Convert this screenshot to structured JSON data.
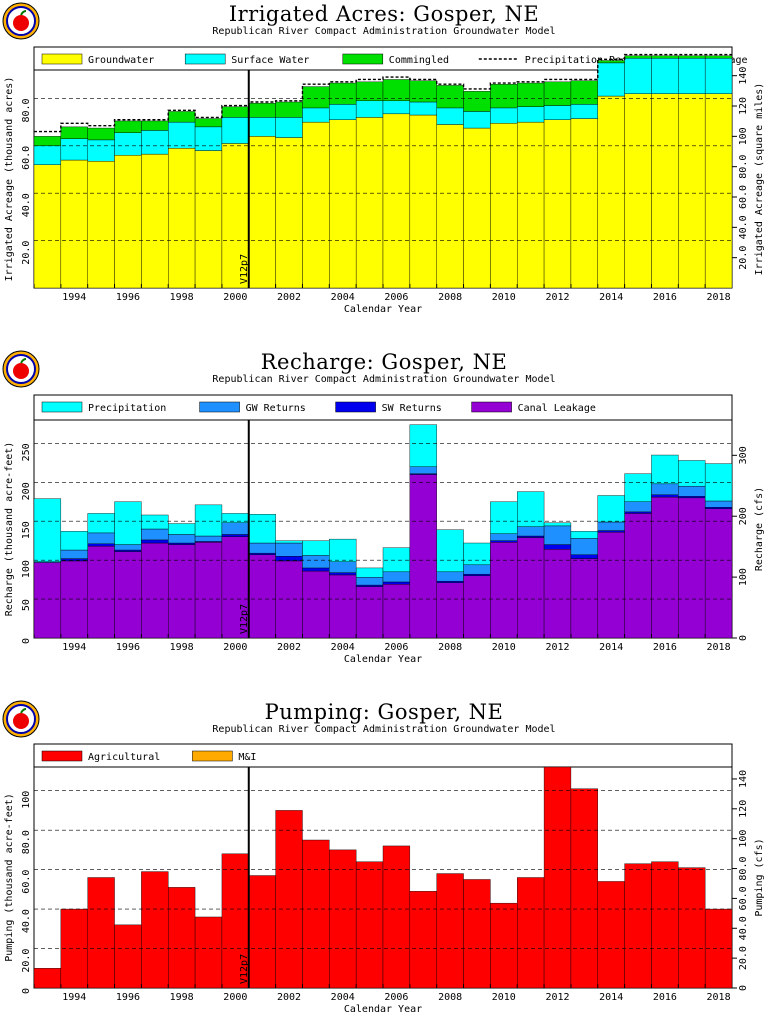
{
  "colors": {
    "groundwater": "#ffff00",
    "surface_water": "#00ffff",
    "commingled": "#00e000",
    "precipitation": "#00ffff",
    "gw_returns": "#1e90ff",
    "sw_returns": "#0000ee",
    "canal_leakage": "#9400d3",
    "agricultural": "#ff0000",
    "mi": "#ffaa00"
  },
  "panels": [
    {
      "title": "Irrigated Acres: Gosper, NE",
      "subtitle": "Republican River Compact Administration Groundwater Model",
      "logo": "apple-logo",
      "chart_data": {
        "type": "bar",
        "stacked": true,
        "xlabel": "Calendar Year",
        "ylabel": "Irrigated Acreage (thousand acres)",
        "y2label": "Irrigated Acreage (square miles)",
        "x": [
          1993,
          1994,
          1995,
          1996,
          1997,
          1998,
          1999,
          2000,
          2001,
          2002,
          2003,
          2004,
          2005,
          2006,
          2007,
          2008,
          2009,
          2010,
          2011,
          2012,
          2013,
          2014,
          2015,
          2016,
          2017,
          2018
        ],
        "xticks": [
          "1994",
          "1996",
          "1998",
          "2000",
          "2002",
          "2004",
          "2006",
          "2008",
          "2010",
          "2012",
          "2014",
          "2016",
          "2018"
        ],
        "ylim": [
          0,
          92
        ],
        "yticks": [
          "20.0",
          "40.0",
          "60.0",
          "80.0"
        ],
        "y2ticks": [
          "20.0",
          "40.0",
          "60.0",
          "80.0",
          "100",
          "120",
          "140"
        ],
        "marker_label": "V12p7",
        "marker_x": 2001,
        "series": [
          {
            "name": "Groundwater",
            "color_key": "groundwater",
            "values": [
              52,
              54,
              53.5,
              56,
              56.5,
              59,
              58,
              61,
              64,
              63.5,
              70,
              71,
              72,
              73.5,
              73,
              69,
              67.5,
              69.5,
              70,
              71,
              71.5,
              81,
              82,
              82,
              82,
              82
            ]
          },
          {
            "name": "Surface Water",
            "color_key": "surface_water",
            "values": [
              8,
              9,
              9,
              9.5,
              10,
              11,
              10,
              11,
              8,
              8.5,
              6,
              6.5,
              7,
              5.5,
              5.5,
              7,
              7,
              6.5,
              6.5,
              6,
              6,
              14,
              15,
              15,
              15,
              15
            ]
          },
          {
            "name": "Commingled",
            "color_key": "commingled",
            "values": [
              4,
              5,
              5,
              5,
              4,
              4.5,
              3.5,
              4.5,
              6,
              6.5,
              9,
              9,
              8,
              9,
              9,
              9.5,
              8.5,
              10,
              10,
              10,
              10,
              1,
              1,
              1,
              1,
              1
            ]
          }
        ],
        "line": {
          "name": "Precipitation Recharge Credit Acreage",
          "values": [
            66,
            69.5,
            68.5,
            71,
            71,
            75,
            72,
            77,
            78.5,
            79,
            86,
            87,
            88,
            89,
            88,
            86,
            84,
            86.5,
            87,
            88,
            88,
            96.5,
            98.5,
            98.5,
            98.5,
            98.5
          ]
        }
      }
    },
    {
      "title": "Recharge: Gosper, NE",
      "subtitle": "Republican River Compact Administration Groundwater Model",
      "logo": "apple-logo",
      "chart_data": {
        "type": "bar",
        "stacked": true,
        "xlabel": "Calendar Year",
        "ylabel": "Recharge (thousand acre-feet)",
        "y2label": "Recharge (cfs)",
        "x": [
          1993,
          1994,
          1995,
          1996,
          1997,
          1998,
          1999,
          2000,
          2001,
          2002,
          2003,
          2004,
          2005,
          2006,
          2007,
          2008,
          2009,
          2010,
          2011,
          2012,
          2013,
          2014,
          2015,
          2016,
          2017,
          2018
        ],
        "xticks": [
          "1994",
          "1996",
          "1998",
          "2000",
          "2002",
          "2004",
          "2006",
          "2008",
          "2010",
          "2012",
          "2014",
          "2016",
          "2018"
        ],
        "ylim": [
          0,
          280
        ],
        "yticks": [
          "0",
          "50",
          "100",
          "150",
          "200",
          "250"
        ],
        "y2ticks": [
          "0",
          "100",
          "200",
          "300"
        ],
        "marker_label": "V12p7",
        "marker_x": 2001,
        "series": [
          {
            "name": "Precipitation",
            "color_key": "precipitation",
            "values": [
              81,
              24,
              25,
              55,
              18,
              14,
              40,
              12,
              37,
              3,
              19,
              29,
              12,
              31,
              54,
              54,
              28,
              41,
              45,
              4,
              9,
              34,
              36,
              37,
              33,
              48
            ]
          },
          {
            "name": "GW Returns",
            "color_key": "gw_returns",
            "values": [
              1,
              11,
              14,
              7,
              14,
              11,
              7,
              15,
              13,
              17,
              16,
              14,
              10,
              13,
              9,
              12,
              12,
              9,
              12,
              24,
              21,
              11,
              13,
              14,
              13,
              8
            ]
          },
          {
            "name": "SW Returns",
            "color_key": "sw_returns",
            "values": [
              0,
              3,
              3,
              2,
              4,
              2,
              1,
              3,
              2,
              6,
              4,
              3,
              2,
              3,
              1,
              2,
              2,
              2,
              2,
              6,
              5,
              2,
              2,
              3,
              2,
              2
            ]
          },
          {
            "name": "Canal Leakage",
            "color_key": "canal_leakage",
            "values": [
              97,
              99,
              118,
              111,
              122,
              120,
              123,
              130,
              107,
              99,
              86,
              81,
              66,
              69,
              210,
              71,
              80,
              123,
              129,
              114,
              102,
              136,
              160,
              181,
              180,
              166
            ]
          }
        ]
      }
    },
    {
      "title": "Pumping: Gosper, NE",
      "subtitle": "Republican River Compact Administration Groundwater Model",
      "logo": "apple-logo",
      "chart_data": {
        "type": "bar",
        "stacked": true,
        "xlabel": "Calendar Year",
        "ylabel": "Pumping (thousand acre-feet)",
        "y2label": "Pumping (cfs)",
        "x": [
          1993,
          1994,
          1995,
          1996,
          1997,
          1998,
          1999,
          2000,
          2001,
          2002,
          2003,
          2004,
          2005,
          2006,
          2007,
          2008,
          2009,
          2010,
          2011,
          2012,
          2013,
          2014,
          2015,
          2016,
          2017,
          2018
        ],
        "xticks": [
          "1994",
          "1996",
          "1998",
          "2000",
          "2002",
          "2004",
          "2006",
          "2008",
          "2010",
          "2012",
          "2014",
          "2016",
          "2018"
        ],
        "ylim": [
          0,
          112
        ],
        "yticks": [
          "0",
          "20.0",
          "40.0",
          "60.0",
          "80.0",
          "100"
        ],
        "y2ticks": [
          "0",
          "20.0",
          "40.0",
          "60.0",
          "80.0",
          "100",
          "120",
          "140"
        ],
        "marker_label": "V12p7",
        "marker_x": 2001,
        "series": [
          {
            "name": "Agricultural",
            "color_key": "agricultural",
            "values": [
              10,
              40,
              56,
              32,
              59,
              51,
              36,
              68,
              57,
              90,
              75,
              70,
              64,
              72,
              49,
              58,
              55,
              43,
              56,
              112,
              101,
              54,
              63,
              64,
              61,
              40
            ]
          },
          {
            "name": "M&I",
            "color_key": "mi",
            "values": [
              0,
              0,
              0,
              0,
              0,
              0,
              0,
              0,
              0,
              0,
              0,
              0,
              0,
              0,
              0,
              0,
              0,
              0,
              0,
              0,
              0,
              0,
              0,
              0,
              0,
              0
            ]
          }
        ]
      }
    }
  ]
}
